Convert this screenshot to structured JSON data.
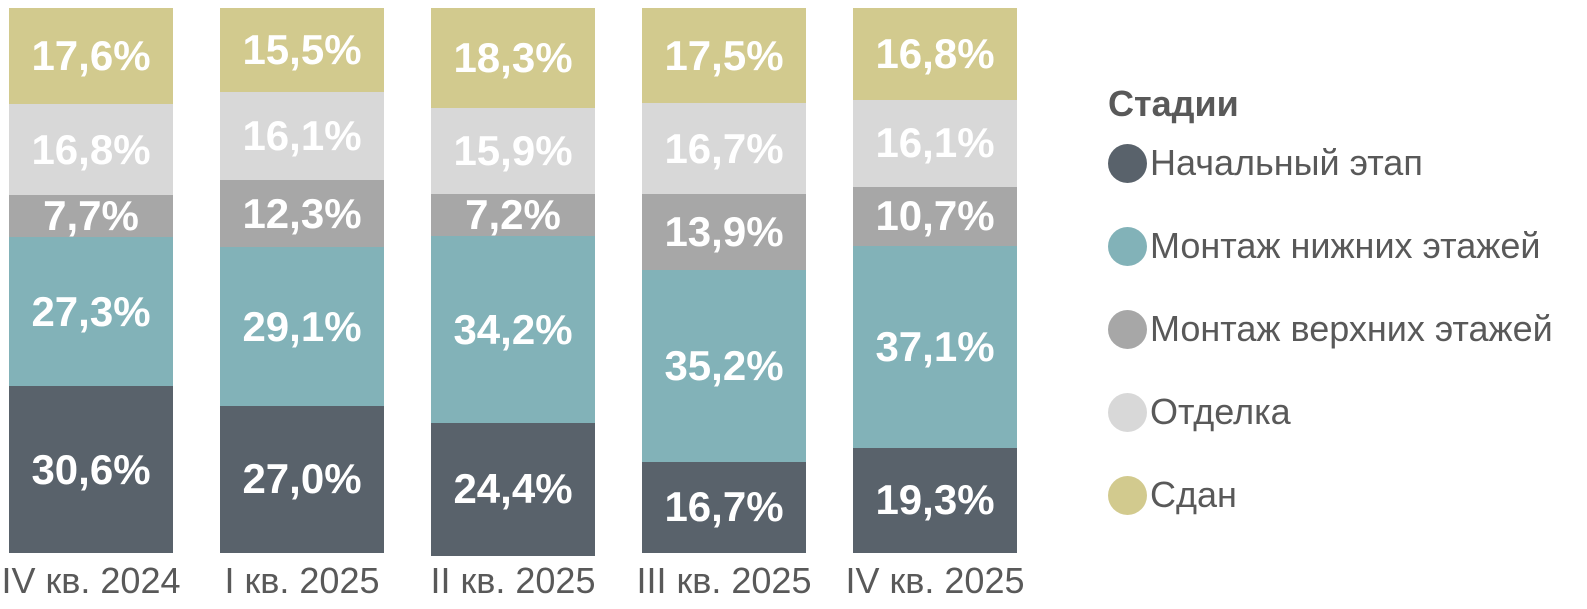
{
  "chart_data": {
    "type": "bar",
    "variant": "stacked-100-percent",
    "orientation": "vertical",
    "grid": false,
    "axes_visible": false,
    "legend_title": "Стадии",
    "legend_position": "right",
    "axis_label_color": "#595959",
    "value_label_color": "#ffffff",
    "categories": [
      "IV кв. 2024",
      "I кв. 2025",
      "II кв. 2025",
      "III кв. 2025",
      "IV кв. 2025"
    ],
    "series": [
      {
        "name": "Начальный этап",
        "color": "#59626b",
        "values": [
          30.6,
          27.0,
          24.4,
          16.7,
          19.3
        ],
        "labels": [
          "30,6%",
          "27,0%",
          "24,4%",
          "16,7%",
          "19,3%"
        ]
      },
      {
        "name": "Монтаж нижних этажей",
        "color": "#82b2b8",
        "values": [
          27.3,
          29.1,
          34.2,
          35.2,
          37.1
        ],
        "labels": [
          "27,3%",
          "29,1%",
          "34,2%",
          "35,2%",
          "37,1%"
        ]
      },
      {
        "name": "Монтаж верхних этажей",
        "color": "#a7a7a7",
        "values": [
          7.7,
          12.3,
          7.2,
          13.9,
          10.7
        ],
        "labels": [
          "7,7%",
          "12,3%",
          "7,2%",
          "13,9%",
          "10,7%"
        ]
      },
      {
        "name": "Отделка",
        "color": "#d8d8d8",
        "values": [
          16.8,
          16.1,
          15.9,
          16.7,
          16.1
        ],
        "labels": [
          "16,8%",
          "16,1%",
          "15,9%",
          "16,7%",
          "16,1%"
        ]
      },
      {
        "name": "Сдан",
        "color": "#d2ca8e",
        "values": [
          17.6,
          15.5,
          18.3,
          17.5,
          16.8
        ],
        "labels": [
          "17,6%",
          "15,5%",
          "18,3%",
          "17,5%",
          "16,8%"
        ]
      }
    ],
    "stack_order_bottom_to_top": [
      "Начальный этап",
      "Монтаж нижних этажей",
      "Монтаж верхних этажей",
      "Отделка",
      "Сдан"
    ]
  }
}
